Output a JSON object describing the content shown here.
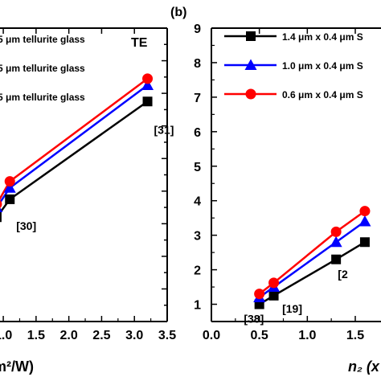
{
  "chart_data": [
    {
      "type": "line",
      "panel_tag": "",
      "corner_label": "TE",
      "xlabel": "m²/W)",
      "ylabel": "",
      "xticks": [
        "1.0",
        "1.5",
        "2.0",
        "2.5",
        "3.0",
        "3.5"
      ],
      "xlim": [
        0.95,
        3.5
      ],
      "ylim": [
        0,
        9
      ],
      "series": [
        {
          "name": "5 μm tellurite glass",
          "color": "#000000",
          "marker": "square",
          "x": [
            0.9,
            1.1,
            3.2
          ],
          "y": [
            3.2,
            3.75,
            6.75
          ]
        },
        {
          "name": "5 μm tellurite glass",
          "color": "#0000ff",
          "marker": "triangle",
          "x": [
            0.9,
            1.1,
            3.2
          ],
          "y": [
            3.5,
            4.1,
            7.25
          ]
        },
        {
          "name": "5 μm tellurite glass",
          "color": "#ff0000",
          "marker": "circle",
          "x": [
            0.9,
            1.1,
            3.2
          ],
          "y": [
            3.6,
            4.3,
            7.45
          ]
        }
      ],
      "annotations": [
        {
          "text": "[30]",
          "x": 1.1,
          "y": 3.2
        },
        {
          "text": "[31]",
          "x": 3.2,
          "y": 6.15
        }
      ]
    },
    {
      "type": "line",
      "panel_tag": "(b)",
      "xlabel": "n₂ (x",
      "ylabel": "",
      "xticks": [
        "0.0",
        "0.5",
        "1.0",
        "1.5"
      ],
      "yticks": [
        "1",
        "2",
        "3",
        "4",
        "5",
        "6",
        "7",
        "8",
        "9"
      ],
      "xlim": [
        0,
        1.6
      ],
      "ylim": [
        0.5,
        9
      ],
      "series": [
        {
          "name": "1.4 μm x 0.4 μm S",
          "color": "#000000",
          "marker": "square",
          "x": [
            0.5,
            0.65,
            1.3,
            1.6
          ],
          "y": [
            1.0,
            1.25,
            2.3,
            2.8
          ]
        },
        {
          "name": "1.0 μm x 0.4 μm S",
          "color": "#0000ff",
          "marker": "triangle",
          "x": [
            0.5,
            0.65,
            1.3,
            1.6
          ],
          "y": [
            1.2,
            1.5,
            2.8,
            3.4
          ]
        },
        {
          "name": "0.6 μm x 0.4 μm S",
          "color": "#ff0000",
          "marker": "circle",
          "x": [
            0.5,
            0.65,
            1.3,
            1.6
          ],
          "y": [
            1.3,
            1.62,
            3.1,
            3.7
          ]
        }
      ],
      "annotations": [
        {
          "text": "[38]",
          "x": 0.38,
          "y": 0.6
        },
        {
          "text": "[19]",
          "x": 0.78,
          "y": 0.9
        },
        {
          "text": "[2",
          "x": 1.36,
          "y": 1.9
        }
      ]
    }
  ]
}
